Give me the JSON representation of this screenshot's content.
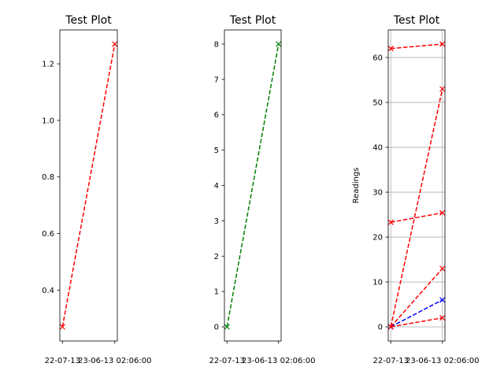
{
  "chart_data": [
    {
      "type": "line",
      "title": "Test Plot",
      "xlabel": "",
      "ylabel": "",
      "x": [
        "22-07-13",
        "23-06-13 02:06:00"
      ],
      "tick_labels_x": [
        "22-07-13",
        "23-06-13 02:06:00"
      ],
      "ylim": [
        0.22,
        1.32
      ],
      "yticks": [
        0.4,
        0.6,
        0.8,
        1.0,
        1.2
      ],
      "ytick_labels": [
        "0.4",
        "0.6",
        "0.8",
        "1.0",
        "1.2"
      ],
      "grid": false,
      "series": [
        {
          "color": "#ff0000",
          "linestyle": "dashed",
          "marker": "x",
          "values": [
            0.27,
            1.27
          ]
        }
      ]
    },
    {
      "type": "line",
      "title": "Test Plot",
      "xlabel": "",
      "ylabel": "",
      "x": [
        "22-07-13",
        "23-06-13 02:06:00"
      ],
      "tick_labels_x": [
        "22-07-13",
        "23-06-13 02:06:00"
      ],
      "ylim": [
        -0.4,
        8.4
      ],
      "yticks": [
        0,
        1,
        2,
        3,
        4,
        5,
        6,
        7,
        8
      ],
      "ytick_labels": [
        "0",
        "1",
        "2",
        "3",
        "4",
        "5",
        "6",
        "7",
        "8"
      ],
      "grid": false,
      "series": [
        {
          "color": "#008000",
          "linestyle": "dashed",
          "marker": "x",
          "values": [
            0,
            8
          ]
        }
      ]
    },
    {
      "type": "line",
      "title": "Test Plot",
      "xlabel": "",
      "ylabel": "Readings",
      "x": [
        "22-07-13",
        "23-06-13 02:06:00"
      ],
      "tick_labels_x": [
        "22-07-13",
        "23-06-13 02:06:00"
      ],
      "ylim": [
        -3.15,
        66.15
      ],
      "yticks": [
        0,
        10,
        20,
        30,
        40,
        50,
        60
      ],
      "ytick_labels": [
        "0",
        "10",
        "20",
        "30",
        "40",
        "50",
        "60"
      ],
      "grid": true,
      "series": [
        {
          "color": "#ff0000",
          "linestyle": "dashed",
          "marker": "x",
          "values": [
            62,
            63
          ]
        },
        {
          "color": "#ff0000",
          "linestyle": "dashed",
          "marker": "x",
          "values": [
            0,
            53
          ]
        },
        {
          "color": "#ff0000",
          "linestyle": "dashed",
          "marker": "x",
          "values": [
            23.3,
            25.4
          ]
        },
        {
          "color": "#ff0000",
          "linestyle": "dashed",
          "marker": "x",
          "values": [
            0,
            13
          ]
        },
        {
          "color": "#0000ff",
          "linestyle": "dashed",
          "marker": "x",
          "values": [
            0,
            6
          ]
        },
        {
          "color": "#ff0000",
          "linestyle": "dashed",
          "marker": "x",
          "values": [
            0,
            2
          ]
        }
      ]
    }
  ]
}
